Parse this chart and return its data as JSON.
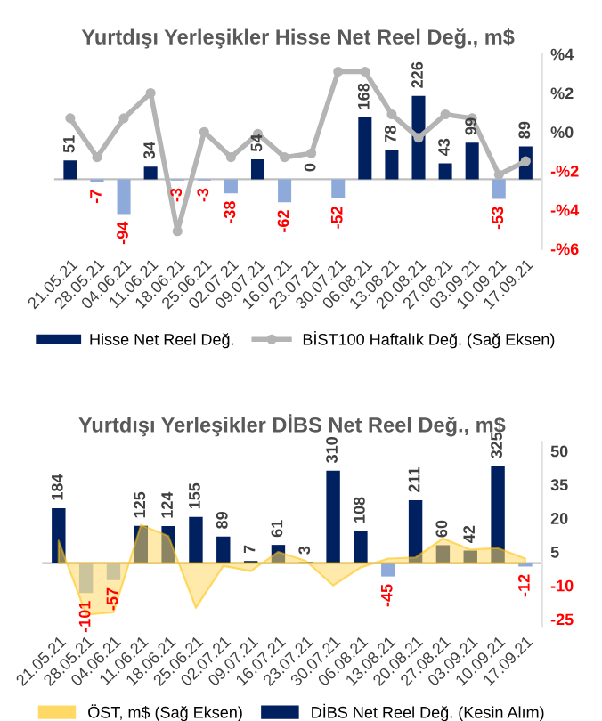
{
  "chart_data": [
    {
      "type": "bar",
      "title": "Yurtdışı Yerleşikler Hisse Net Reel Değ., m$",
      "categories": [
        "21.05.21",
        "28.05.21",
        "04.06.21",
        "11.06.21",
        "18.06.21",
        "25.06.21",
        "02.07.21",
        "09.07.21",
        "16.07.21",
        "23.07.21",
        "30.07.21",
        "06.08.21",
        "13.08.21",
        "20.08.21",
        "27.08.21",
        "03.09.21",
        "10.09.21",
        "17.09.21"
      ],
      "series": [
        {
          "name": "Hisse Net Reel Değ.",
          "type": "bar",
          "color": "#002060",
          "colors": [
            "#002060",
            "#8eaadb",
            "#8eaadb",
            "#002060",
            "#8eaadb",
            "#8eaadb",
            "#8eaadb",
            "#002060",
            "#8eaadb",
            "#002060",
            "#8eaadb",
            "#002060",
            "#002060",
            "#002060",
            "#002060",
            "#002060",
            "#8eaadb",
            "#002060"
          ],
          "values": [
            51,
            -7,
            -94,
            34,
            -3,
            -3,
            -38,
            54,
            -62,
            0,
            -52,
            168,
            78,
            226,
            43,
            99,
            -53,
            89
          ],
          "value_labels": [
            "51",
            "-7",
            "-94",
            "34",
            "-3",
            "-3",
            "-38",
            "54",
            "-62",
            "0",
            "-52",
            "168",
            "78",
            "226",
            "43",
            "99",
            "-53",
            "89"
          ]
        },
        {
          "name": "BİST100 Haftalık Değ. (Sağ Eksen)",
          "type": "line",
          "axis": "y2",
          "color": "#b4b4b4",
          "marker": "circle",
          "values": [
            0.7,
            -1.3,
            0.7,
            2.0,
            -5.1,
            0.0,
            -1.3,
            -0.1,
            -1.3,
            -1.1,
            3.1,
            3.1,
            0.9,
            -0.3,
            0.9,
            0.7,
            -2.2,
            -1.5
          ]
        }
      ],
      "y2lim": [
        -6,
        4
      ],
      "y2ticks": [
        {
          "value": 4,
          "label": "%4"
        },
        {
          "value": 2,
          "label": "%2"
        },
        {
          "value": 0,
          "label": "%0"
        },
        {
          "value": -2,
          "label": "-%2"
        },
        {
          "value": -4,
          "label": "-%4"
        },
        {
          "value": -6,
          "label": "-%6"
        }
      ],
      "legend": "bottom",
      "grid": false
    },
    {
      "type": "bar",
      "title": "Yurtdışı Yerleşikler DİBS Net Reel Değ., m$",
      "categories": [
        "21.05.21",
        "28.05.21",
        "04.06.21",
        "11.06.21",
        "18.06.21",
        "25.06.21",
        "02.07.21",
        "09.07.21",
        "16.07.21",
        "23.07.21",
        "30.07.21",
        "06.08.21",
        "13.08.21",
        "20.08.21",
        "27.08.21",
        "03.09.21",
        "10.09.21",
        "17.09.21"
      ],
      "series": [
        {
          "name": "ÖST, m$ (Sağ Eksen)",
          "type": "area",
          "axis": "y2",
          "color": "#ffd966",
          "values": [
            10,
            -23,
            -22,
            17,
            12,
            -20,
            -1.3,
            -3.6,
            5,
            1,
            -10,
            -2,
            2,
            2.5,
            11,
            6,
            6.7,
            2
          ]
        },
        {
          "name": "DİBS Net Reel Değ. (Kesin Alım)",
          "type": "bar",
          "color": "#002060",
          "colors": [
            "#002060",
            "#8eaadb",
            "#8eaadb",
            "#002060",
            "#002060",
            "#002060",
            "#002060",
            "#002060",
            "#002060",
            "#002060",
            "#002060",
            "#002060",
            "#8eaadb",
            "#002060",
            "#002060",
            "#002060",
            "#002060",
            "#8eaadb"
          ],
          "values": [
            184,
            -101,
            -57,
            125,
            124,
            155,
            89,
            7,
            61,
            3,
            310,
            108,
            -45,
            211,
            60,
            42,
            325,
            -12
          ],
          "value_labels": [
            "184",
            "-101",
            "-57",
            "125",
            "124",
            "155",
            "89",
            "7",
            "61",
            "3",
            "310",
            "108",
            "-45",
            "211",
            "60",
            "42",
            "325",
            "-12"
          ]
        }
      ],
      "y2lim": [
        -28,
        54
      ],
      "y2ticks": [
        50,
        35,
        20,
        5,
        -10,
        -25
      ],
      "legend": "bottom",
      "grid": false
    }
  ]
}
